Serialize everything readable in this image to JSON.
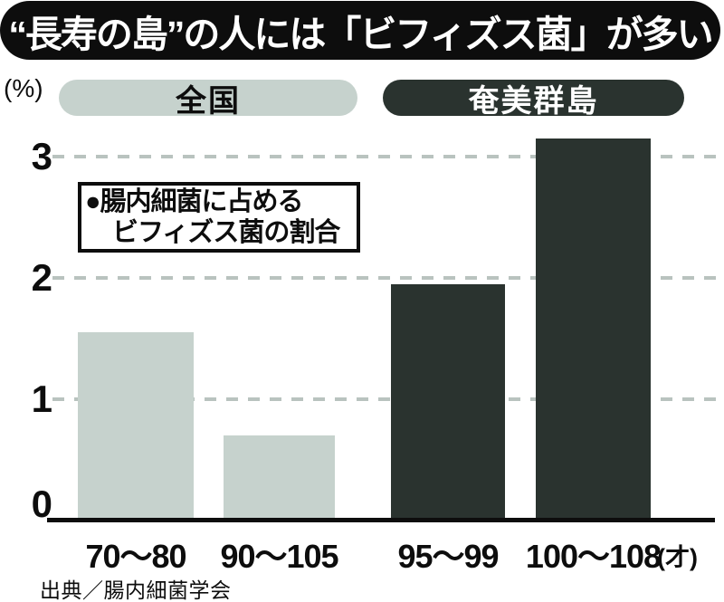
{
  "page": {
    "title": "“長寿の島”の人には「ビフィズス菌」が多い",
    "unit_label": "(%)",
    "age_unit_label": "(才)",
    "source": "出典／腸内細菌学会"
  },
  "legend": {
    "national_label": "全国",
    "amami_label": "奄美群島"
  },
  "annotation": {
    "line1": "●腸内細菌に占める",
    "line2": "ビフィズス菌の割合"
  },
  "colors": {
    "national": "#c6d2cd",
    "amami": "#2a332f",
    "title_bg": "#0d0d0d",
    "grid": "#b9c3bf",
    "text": "#0d0d0d"
  },
  "chart_data": {
    "type": "bar",
    "title": "“長寿の島”の人には「ビフィズス菌」が多い",
    "note": "腸内細菌に占めるビフィズス菌の割合",
    "categories": [
      "70〜80",
      "90〜105",
      "95〜99",
      "100〜108"
    ],
    "x_unit": "才",
    "ylabel": "%",
    "ytick_labels": [
      "0",
      "1",
      "2",
      "3"
    ],
    "yticks": [
      0,
      1,
      2,
      3
    ],
    "ylim": [
      0,
      3.3
    ],
    "grid": "dashed-horizontal",
    "legend_position": "top",
    "series": [
      {
        "name": "全国",
        "color": "#c6d2cd",
        "values": [
          1.55,
          0.7,
          null,
          null
        ]
      },
      {
        "name": "奄美群島",
        "color": "#2a332f",
        "values": [
          null,
          null,
          1.95,
          3.15
        ]
      }
    ],
    "bars": [
      {
        "category": "70〜80",
        "series": "全国",
        "value": 1.55
      },
      {
        "category": "90〜105",
        "series": "全国",
        "value": 0.7
      },
      {
        "category": "95〜99",
        "series": "奄美群島",
        "value": 1.95
      },
      {
        "category": "100〜108",
        "series": "奄美群島",
        "value": 3.15
      }
    ]
  }
}
